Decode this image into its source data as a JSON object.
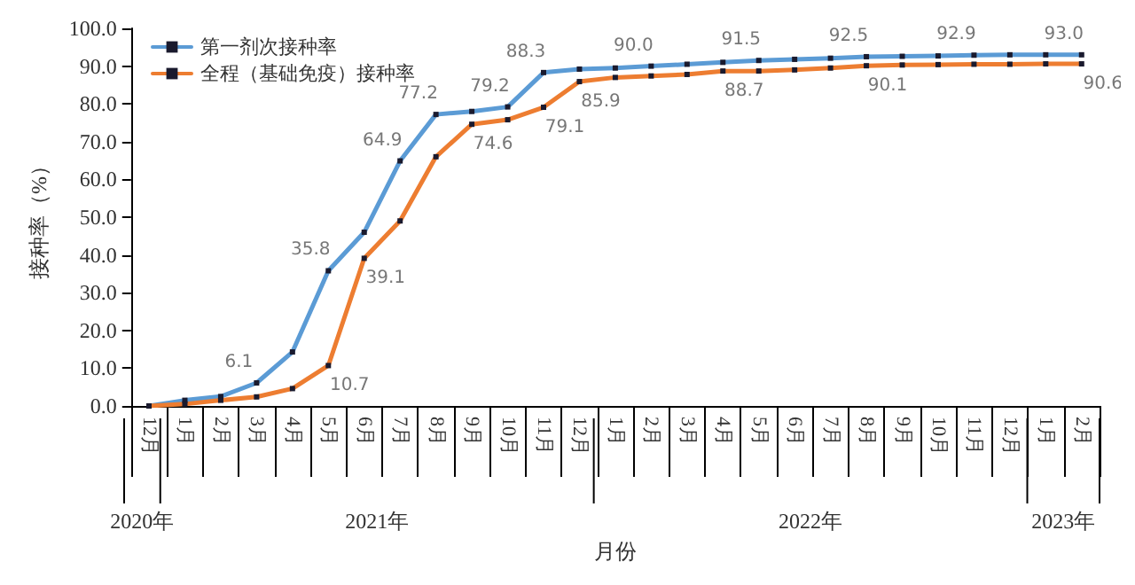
{
  "chart_data": {
    "type": "line",
    "xlabel": "月份",
    "ylabel": "接种率（%）",
    "categories": [
      "12月",
      "1月",
      "2月",
      "3月",
      "4月",
      "5月",
      "6月",
      "7月",
      "8月",
      "9月",
      "10月",
      "11月",
      "12月",
      "1月",
      "2月",
      "3月",
      "4月",
      "5月",
      "6月",
      "7月",
      "8月",
      "9月",
      "10月",
      "11月",
      "12月",
      "1月",
      "2月"
    ],
    "annotations": [
      "2020年",
      "2021年",
      "2022年",
      "2023年"
    ],
    "series": [
      {
        "name": "第一剂次接种率",
        "color": "#5b9bd5",
        "values": [
          0.0,
          1.5,
          2.5,
          6.1,
          14.3,
          35.8,
          46.0,
          64.9,
          77.2,
          78.0,
          79.2,
          88.3,
          89.2,
          89.5,
          90.0,
          90.5,
          91.0,
          91.5,
          91.8,
          92.1,
          92.5,
          92.6,
          92.7,
          92.9,
          93.0,
          93.0,
          93.0
        ],
        "value_labels": [
          null,
          null,
          null,
          "6.1",
          null,
          "35.8",
          null,
          "64.9",
          "77.2",
          null,
          "79.2",
          "88.3",
          null,
          null,
          "90.0",
          null,
          null,
          "91.5",
          null,
          null,
          "92.5",
          null,
          null,
          "92.9",
          null,
          null,
          "93.0"
        ]
      },
      {
        "name": "全程（基础免疫）接种率",
        "color": "#ed7d31",
        "values": [
          0.0,
          0.5,
          1.5,
          2.4,
          4.6,
          10.7,
          39.1,
          49.0,
          66.0,
          74.6,
          75.8,
          79.1,
          85.9,
          87.0,
          87.4,
          87.8,
          88.7,
          88.7,
          89.0,
          89.5,
          90.1,
          90.3,
          90.4,
          90.5,
          90.5,
          90.6,
          90.6
        ],
        "value_labels": [
          null,
          null,
          null,
          null,
          null,
          "10.7",
          "39.1",
          null,
          null,
          "74.6",
          null,
          "79.1",
          "85.9",
          null,
          null,
          null,
          "88.7",
          null,
          null,
          null,
          "90.1",
          null,
          null,
          null,
          null,
          null,
          "90.6"
        ]
      }
    ],
    "ylim": [
      0,
      100
    ],
    "yticks": [
      {
        "value": 0,
        "label": "0.0"
      },
      {
        "value": 10,
        "label": "10.0"
      },
      {
        "value": 20,
        "label": "20.0"
      },
      {
        "value": 30,
        "label": "30.0"
      },
      {
        "value": 40,
        "label": "40.0"
      },
      {
        "value": 50,
        "label": "50.0"
      },
      {
        "value": 60,
        "label": "60.0"
      },
      {
        "value": 70,
        "label": "70.0"
      },
      {
        "value": 80,
        "label": "80.0"
      },
      {
        "value": 90,
        "label": "90.0"
      },
      {
        "value": 100,
        "label": "100.0"
      }
    ],
    "grid": false,
    "legend": "top left",
    "marker": "square",
    "line_style": "solid"
  }
}
